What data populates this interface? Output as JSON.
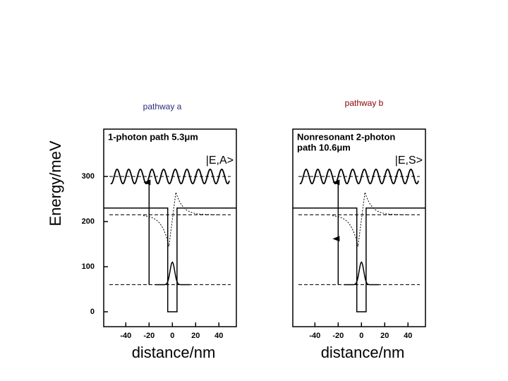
{
  "chart_data": [
    {
      "type": "line",
      "title": "pathway a",
      "title_color": "#2b2b80",
      "annotation": [
        "1-photon path 5.3μm"
      ],
      "state_label": "|E,A>",
      "xlabel": "distance/nm",
      "ylabel": "Energy/meV",
      "xlim": [
        -59,
        55
      ],
      "xticks": [
        -40,
        -20,
        0,
        20,
        40
      ],
      "ylim": [
        -33,
        405
      ],
      "yticks": [
        0,
        100,
        200,
        300
      ],
      "series": [
        {
          "x": [
            -59,
            -4,
            -4,
            4,
            4,
            55
          ],
          "values": [
            230,
            230,
            0,
            0,
            230,
            230
          ],
          "color": "#000000"
        }
      ],
      "levels": [
        60,
        215,
        300
      ],
      "arrow_x": -20,
      "transitions": [
        [
          60,
          290
        ]
      ]
    },
    {
      "type": "line",
      "title": "pathway  b",
      "title_color": "#8b0000",
      "annotation": [
        "Nonresonant 2-photon",
        "path 10.6μm"
      ],
      "state_label": "|E,S>",
      "xlabel": "distance/nm",
      "xlim": [
        -59,
        55
      ],
      "xticks": [
        -40,
        -20,
        0,
        20,
        40
      ],
      "ylim": [
        -33,
        405
      ],
      "series": [
        {
          "x": [
            -59,
            -4,
            -4,
            4,
            4,
            55
          ],
          "values": [
            230,
            230,
            0,
            0,
            230,
            230
          ],
          "color": "#000000"
        }
      ],
      "levels": [
        60,
        215,
        300
      ],
      "arrow_x": -20,
      "transitions": [
        [
          60,
          165
        ],
        [
          165,
          290
        ]
      ]
    }
  ]
}
